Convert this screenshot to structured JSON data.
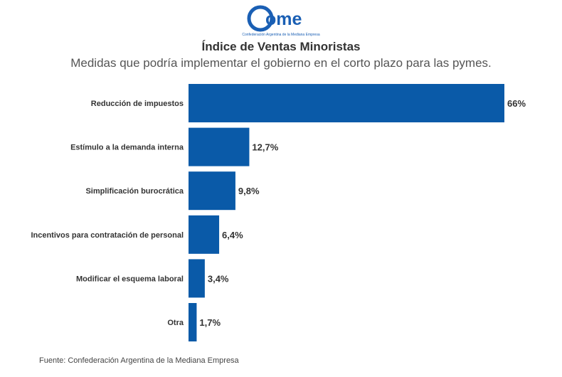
{
  "logo": {
    "text": "ome",
    "tagline": "Confederación Argentina de la Mediana Empresa"
  },
  "colors": {
    "bar": "#0a5aa8",
    "logo": "#1a5fb4"
  },
  "footer": {
    "source": "Fuente: Confederación Argentina de la Mediana Empresa"
  },
  "chart_data": {
    "type": "bar",
    "orientation": "horizontal",
    "title": "Índice de Ventas Minoristas",
    "subtitle": "Medidas que podría implementar el gobierno en el corto plazo para las pymes.",
    "xlabel": "",
    "ylabel": "",
    "grid": false,
    "xlim": [
      0,
      66
    ],
    "categories": [
      "Reducción de impuestos",
      "Estímulo a la demanda interna",
      "Simplificación burocrática",
      "Incentivos para contratación de personal",
      "Modificar el esquema laboral",
      "Otra"
    ],
    "values": [
      66,
      12.7,
      9.8,
      6.4,
      3.4,
      1.7
    ],
    "value_labels": [
      "66%",
      "12,7%",
      "9,8%",
      "6,4%",
      "3,4%",
      "1,7%"
    ]
  }
}
